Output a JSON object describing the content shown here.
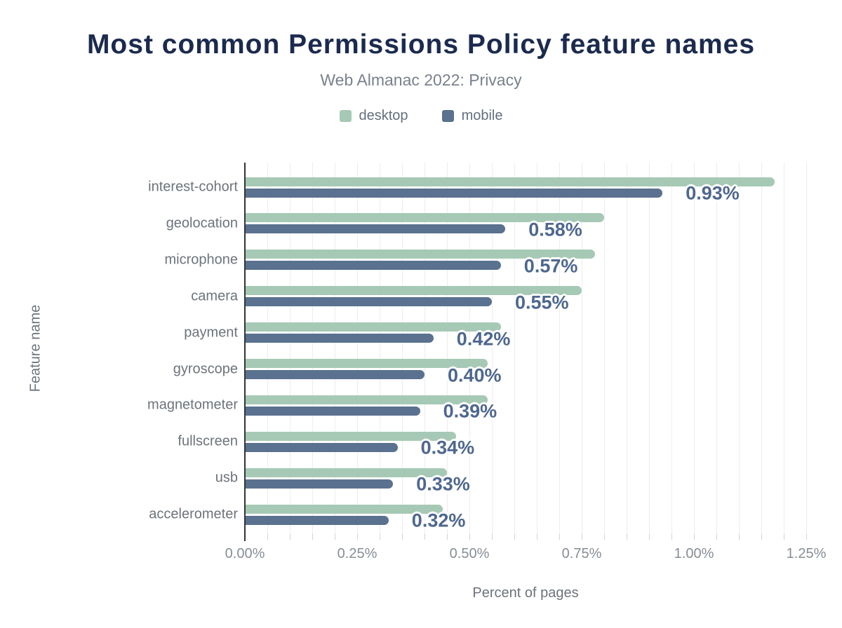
{
  "header": {
    "title": "Most common Permissions Policy feature names",
    "subtitle": "Web Almanac 2022: Privacy"
  },
  "palette": {
    "desktop": "#a6c9b5",
    "mobile": "#5a718f",
    "title_text": "#1b2a4e",
    "value_label_text": "#4e678e",
    "axis_line": "#343434"
  },
  "chart_data": {
    "type": "bar",
    "orientation": "horizontal",
    "title": "Most common Permissions Policy feature names",
    "subtitle": "Web Almanac 2022: Privacy",
    "xlabel": "Percent of pages",
    "ylabel": "Feature name",
    "xlim": [
      0,
      1.25
    ],
    "x_major_ticks": [
      "0.00%",
      "0.25%",
      "0.50%",
      "0.75%",
      "1.00%",
      "1.25%"
    ],
    "x_major_tick_values": [
      0,
      0.25,
      0.5,
      0.75,
      1.0,
      1.25
    ],
    "x_minor_step": 0.05,
    "grid": true,
    "legend_position": "top",
    "categories": [
      "interest-cohort",
      "geolocation",
      "microphone",
      "camera",
      "payment",
      "gyroscope",
      "magnetometer",
      "fullscreen",
      "usb",
      "accelerometer"
    ],
    "series": [
      {
        "name": "desktop",
        "color": "#a6c9b5",
        "values": [
          1.18,
          0.8,
          0.78,
          0.75,
          0.57,
          0.54,
          0.54,
          0.47,
          0.45,
          0.44
        ]
      },
      {
        "name": "mobile",
        "color": "#5a718f",
        "values": [
          0.93,
          0.58,
          0.57,
          0.55,
          0.42,
          0.4,
          0.39,
          0.34,
          0.33,
          0.32
        ]
      }
    ],
    "bar_labels": [
      "0.93%",
      "0.58%",
      "0.57%",
      "0.55%",
      "0.42%",
      "0.40%",
      "0.39%",
      "0.34%",
      "0.33%",
      "0.32%"
    ],
    "bar_labels_series": "mobile"
  }
}
